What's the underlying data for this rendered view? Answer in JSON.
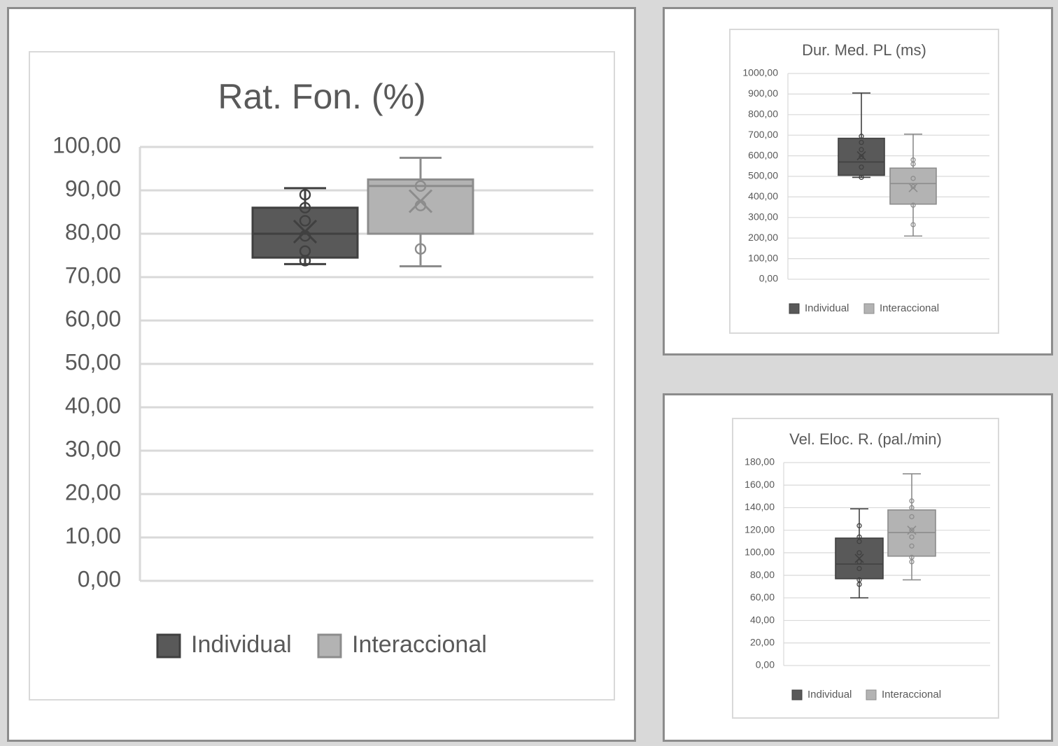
{
  "colors": {
    "individual": "#595959",
    "individual_stroke": "#404040",
    "interaccional": "#b3b3b3",
    "interaccional_stroke": "#8c8c8c",
    "grid": "#d9d9d9",
    "text": "#595959"
  },
  "chart_data": [
    {
      "type": "box",
      "title": "Rat. Fon. (%)",
      "ylim": [
        0,
        100
      ],
      "yticks": [
        "0,00",
        "10,00",
        "20,00",
        "30,00",
        "40,00",
        "50,00",
        "60,00",
        "70,00",
        "80,00",
        "90,00",
        "100,00"
      ],
      "ytick_values": [
        0,
        10,
        20,
        30,
        40,
        50,
        60,
        70,
        80,
        90,
        100
      ],
      "legend": [
        "Individual",
        "Interaccional"
      ],
      "legend_position": "bottom",
      "grid": true,
      "series": [
        {
          "name": "Individual",
          "min": 73.0,
          "q1": 74.5,
          "median": 80.0,
          "q3": 86.0,
          "max": 90.5,
          "mean": 80.5,
          "points": [
            89.0,
            86.0,
            83.0,
            79.5,
            76.0,
            73.8
          ]
        },
        {
          "name": "Interaccional",
          "min": 72.5,
          "q1": 80.0,
          "median": 91.0,
          "q3": 92.5,
          "max": 97.5,
          "mean": 87.5,
          "points": [
            91.0,
            86.5,
            76.5
          ]
        }
      ]
    },
    {
      "type": "box",
      "title": "Dur. Med. PL (ms)",
      "ylim": [
        0,
        1000
      ],
      "yticks": [
        "0,00",
        "100,00",
        "200,00",
        "300,00",
        "400,00",
        "500,00",
        "600,00",
        "700,00",
        "800,00",
        "900,00",
        "1000,00"
      ],
      "ytick_values": [
        0,
        100,
        200,
        300,
        400,
        500,
        600,
        700,
        800,
        900,
        1000
      ],
      "legend": [
        "Individual",
        "Interaccional"
      ],
      "legend_position": "bottom",
      "grid": true,
      "series": [
        {
          "name": "Individual",
          "min": 495,
          "q1": 505,
          "median": 570,
          "q3": 685,
          "max": 905,
          "mean": 600,
          "points": [
            695,
            665,
            630,
            595,
            545,
            495
          ]
        },
        {
          "name": "Interaccional",
          "min": 210,
          "q1": 365,
          "median": 465,
          "q3": 540,
          "max": 705,
          "mean": 445,
          "points": [
            580,
            560,
            490,
            450,
            360,
            265
          ]
        }
      ]
    },
    {
      "type": "box",
      "title": "Vel. Eloc. R. (pal./min)",
      "ylim": [
        0,
        180
      ],
      "yticks": [
        "0,00",
        "20,00",
        "40,00",
        "60,00",
        "80,00",
        "100,00",
        "120,00",
        "140,00",
        "160,00",
        "180,00"
      ],
      "ytick_values": [
        0,
        20,
        40,
        60,
        80,
        100,
        120,
        140,
        160,
        180
      ],
      "legend": [
        "Individual",
        "Interaccional"
      ],
      "legend_position": "bottom",
      "grid": true,
      "series": [
        {
          "name": "Individual",
          "min": 60,
          "q1": 77,
          "median": 90,
          "q3": 113,
          "max": 139,
          "mean": 95,
          "points": [
            124,
            114,
            110,
            100,
            92,
            86,
            76,
            72
          ]
        },
        {
          "name": "Interaccional",
          "min": 76,
          "q1": 97,
          "median": 118,
          "q3": 138,
          "max": 170,
          "mean": 120,
          "points": [
            146,
            140,
            132,
            120,
            114,
            106,
            96,
            92
          ]
        }
      ]
    }
  ]
}
